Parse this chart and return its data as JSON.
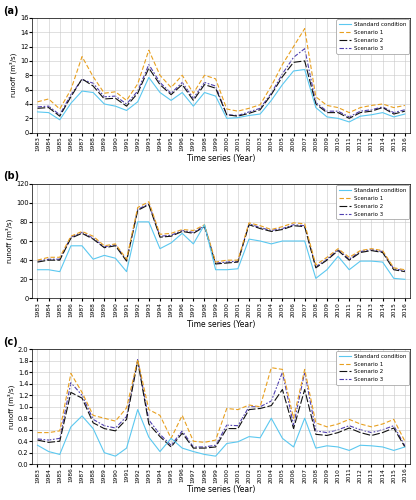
{
  "years": [
    1983,
    1984,
    1985,
    1986,
    1987,
    1988,
    1989,
    1990,
    1991,
    1992,
    1993,
    1994,
    1995,
    1996,
    1997,
    1998,
    1999,
    2000,
    2001,
    2002,
    2003,
    2004,
    2005,
    2006,
    2007,
    2008,
    2009,
    2010,
    2011,
    2012,
    2013,
    2014,
    2015,
    2016
  ],
  "a_standard": [
    2.9,
    2.8,
    1.8,
    4.1,
    5.8,
    5.6,
    4.0,
    3.7,
    3.1,
    4.3,
    7.7,
    5.6,
    4.5,
    5.6,
    3.7,
    5.6,
    5.1,
    2.0,
    2.1,
    2.4,
    2.6,
    4.5,
    6.7,
    8.6,
    8.8,
    3.5,
    2.2,
    2.0,
    1.5,
    2.3,
    2.5,
    2.8,
    2.2,
    2.6
  ],
  "a_s1": [
    4.3,
    4.7,
    3.3,
    6.0,
    10.6,
    7.8,
    5.5,
    5.7,
    4.5,
    6.8,
    11.5,
    8.0,
    6.3,
    8.0,
    5.5,
    8.0,
    7.5,
    3.3,
    3.0,
    3.4,
    3.9,
    6.5,
    9.5,
    12.0,
    14.5,
    5.0,
    3.8,
    3.5,
    2.8,
    3.5,
    3.8,
    4.0,
    3.5,
    3.8
  ],
  "a_s2": [
    3.4,
    3.5,
    2.3,
    5.0,
    7.5,
    6.5,
    4.7,
    4.8,
    3.7,
    5.5,
    9.0,
    6.7,
    5.3,
    6.7,
    4.5,
    6.7,
    6.2,
    2.5,
    2.3,
    2.7,
    3.2,
    5.3,
    7.8,
    9.8,
    10.0,
    4.0,
    2.8,
    2.8,
    2.0,
    2.8,
    3.0,
    3.5,
    2.6,
    3.0
  ],
  "a_s3": [
    3.6,
    3.7,
    2.5,
    5.3,
    7.4,
    6.9,
    5.0,
    5.1,
    4.0,
    5.8,
    9.5,
    7.0,
    5.5,
    7.0,
    4.8,
    7.0,
    6.5,
    2.5,
    2.4,
    2.9,
    3.4,
    5.5,
    8.2,
    10.5,
    11.7,
    4.2,
    3.0,
    3.0,
    2.2,
    3.0,
    3.2,
    3.6,
    2.8,
    3.2
  ],
  "b_standard": [
    30,
    30,
    28,
    55,
    55,
    41,
    45,
    42,
    28,
    80,
    80,
    52,
    58,
    68,
    57,
    77,
    30,
    30,
    31,
    62,
    60,
    57,
    60,
    60,
    60,
    21,
    30,
    44,
    30,
    39,
    39,
    38,
    21,
    20
  ],
  "b_s1": [
    40,
    43,
    43,
    65,
    70,
    65,
    55,
    57,
    41,
    95,
    101,
    67,
    68,
    72,
    71,
    77,
    38,
    40,
    40,
    79,
    76,
    72,
    75,
    79,
    78,
    35,
    43,
    52,
    43,
    50,
    52,
    50,
    32,
    30
  ],
  "b_s2": [
    38,
    40,
    40,
    63,
    68,
    62,
    53,
    55,
    39,
    92,
    98,
    64,
    65,
    70,
    68,
    75,
    36,
    37,
    38,
    77,
    73,
    70,
    72,
    76,
    75,
    32,
    40,
    50,
    40,
    48,
    50,
    48,
    30,
    28
  ],
  "b_s3": [
    39,
    41,
    41,
    64,
    69,
    63,
    54,
    56,
    40,
    93,
    99,
    65,
    66,
    71,
    69,
    76,
    37,
    38,
    39,
    78,
    74,
    71,
    73,
    77,
    76,
    33,
    41,
    51,
    41,
    49,
    51,
    49,
    31,
    29
  ],
  "c_standard": [
    0.33,
    0.22,
    0.17,
    0.65,
    0.84,
    0.62,
    0.2,
    0.14,
    0.28,
    0.95,
    0.47,
    0.22,
    0.45,
    0.28,
    0.22,
    0.17,
    0.14,
    0.36,
    0.39,
    0.48,
    0.46,
    0.8,
    0.45,
    0.3,
    0.8,
    0.28,
    0.32,
    0.3,
    0.24,
    0.33,
    0.32,
    0.3,
    0.24,
    0.3
  ],
  "c_s1": [
    0.55,
    0.55,
    0.58,
    1.58,
    1.25,
    0.85,
    0.8,
    0.75,
    0.98,
    1.82,
    0.95,
    0.85,
    0.45,
    0.85,
    0.4,
    0.38,
    0.42,
    0.97,
    0.95,
    1.03,
    1.0,
    1.68,
    1.65,
    0.8,
    1.65,
    0.72,
    0.65,
    0.7,
    0.78,
    0.7,
    0.65,
    0.7,
    0.78,
    0.4
  ],
  "c_s2": [
    0.42,
    0.38,
    0.4,
    1.25,
    1.15,
    0.72,
    0.62,
    0.58,
    0.78,
    1.8,
    0.7,
    0.48,
    0.3,
    0.54,
    0.28,
    0.28,
    0.3,
    0.62,
    0.62,
    0.95,
    0.97,
    1.02,
    1.3,
    0.62,
    1.3,
    0.52,
    0.5,
    0.55,
    0.63,
    0.55,
    0.5,
    0.55,
    0.63,
    0.3
  ],
  "c_s3": [
    0.44,
    0.42,
    0.45,
    1.42,
    1.2,
    0.78,
    0.67,
    0.63,
    0.83,
    1.82,
    0.77,
    0.52,
    0.33,
    0.58,
    0.3,
    0.3,
    0.33,
    0.68,
    0.67,
    1.0,
    1.0,
    1.1,
    1.6,
    0.68,
    1.6,
    0.58,
    0.55,
    0.6,
    0.67,
    0.6,
    0.55,
    0.6,
    0.67,
    0.32
  ],
  "color_standard": "#5bc8f0",
  "color_s1": "#e8a020",
  "color_s2": "#111111",
  "color_s3": "#5040b0",
  "panel_labels": [
    "(a)",
    "(b)",
    "(c)"
  ],
  "ylabel": "runoff (m³/s)",
  "xlabel": "Time series (Year)",
  "a_ylim": [
    0,
    16
  ],
  "b_ylim": [
    0,
    120
  ],
  "c_ylim": [
    0,
    2.0
  ],
  "a_yticks": [
    0,
    2,
    4,
    6,
    8,
    10,
    12,
    14,
    16
  ],
  "b_yticks": [
    0,
    20,
    40,
    60,
    80,
    100,
    120
  ],
  "c_yticks": [
    0,
    0.2,
    0.4,
    0.6,
    0.8,
    1.0,
    1.2,
    1.4,
    1.6,
    1.8,
    2.0
  ]
}
